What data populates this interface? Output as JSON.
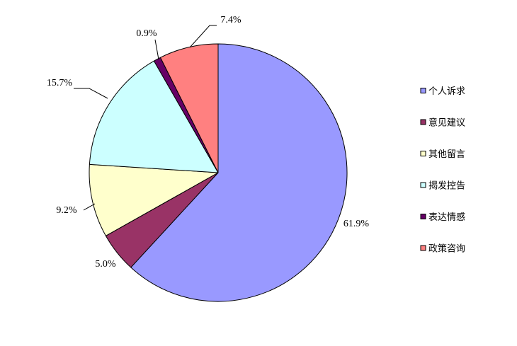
{
  "chart_data": {
    "type": "pie",
    "title": "",
    "categories": [
      "个人诉求",
      "意见建议",
      "其他留言",
      "揭发控告",
      "表达情感",
      "政策咨询"
    ],
    "values": [
      61.9,
      5.0,
      9.2,
      15.7,
      0.9,
      7.4
    ],
    "data_labels": [
      "61.9%",
      "5.0%",
      "9.2%",
      "15.7%",
      "0.9%",
      "7.4%"
    ],
    "colors": [
      "#9999FF",
      "#993366",
      "#FFFFCC",
      "#CCFFFF",
      "#660066",
      "#FF8080"
    ],
    "legend_position": "right",
    "start_angle": "12 o'clock",
    "direction": "clockwise"
  }
}
